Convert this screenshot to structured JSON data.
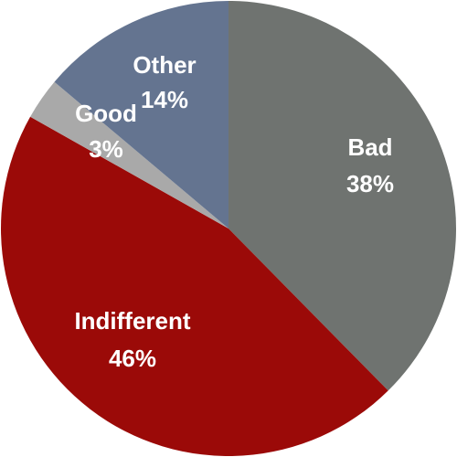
{
  "chart_data": {
    "type": "pie",
    "slices": [
      {
        "label": "Bad",
        "value": 38,
        "percent_text": "38%",
        "color": "#6f7370"
      },
      {
        "label": "Indifferent",
        "value": 46,
        "percent_text": "46%",
        "color": "#9b0a08"
      },
      {
        "label": "Good",
        "value": 3,
        "percent_text": "3%",
        "color": "#a9a9a9"
      },
      {
        "label": "Other",
        "value": 14,
        "percent_text": "14%",
        "color": "#647490"
      }
    ],
    "start_angle_deg": 0,
    "direction": "clockwise"
  }
}
